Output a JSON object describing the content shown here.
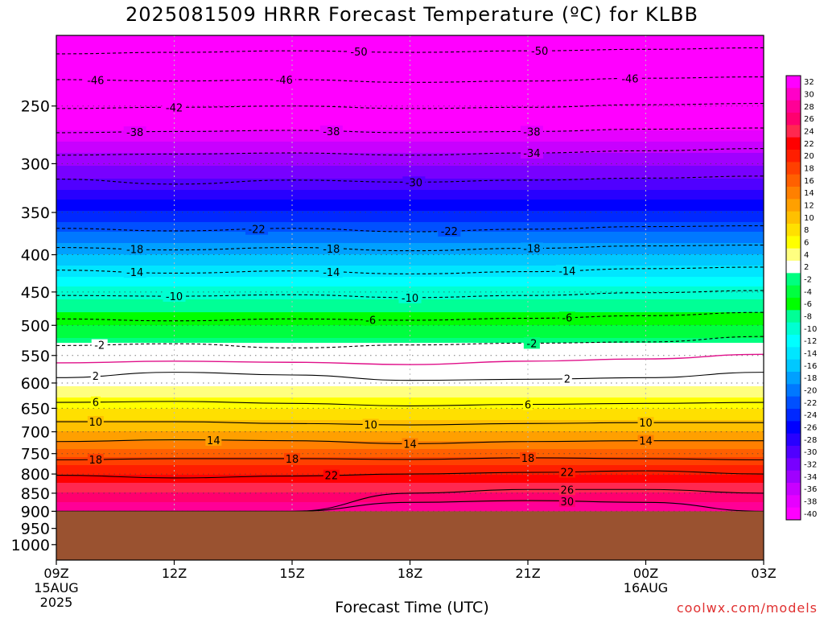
{
  "chart_data": {
    "type": "heatmap",
    "title": "2025081509 HRRR Forecast Temperature (ºC) for KLBB",
    "xlabel": "Forecast Time (UTC)",
    "ylabel": "",
    "x_ticks": [
      {
        "hour": 0,
        "label": "09Z",
        "sub1": "15AUG",
        "sub2": "2025"
      },
      {
        "hour": 3,
        "label": "12Z"
      },
      {
        "hour": 6,
        "label": "15Z"
      },
      {
        "hour": 9,
        "label": "18Z"
      },
      {
        "hour": 12,
        "label": "21Z"
      },
      {
        "hour": 15,
        "label": "00Z",
        "sub1": "16AUG"
      },
      {
        "hour": 18,
        "label": "03Z"
      }
    ],
    "xlim_hours": [
      0,
      18
    ],
    "ylim_hpa": [
      1050,
      200
    ],
    "y_scale": "log",
    "y_ticks": [
      250,
      300,
      350,
      400,
      450,
      500,
      550,
      600,
      650,
      700,
      750,
      800,
      850,
      900,
      950,
      1000
    ],
    "surface_pressure_hpa": 900,
    "ground_color": "#9a5230",
    "temperature_profile": [
      {
        "p": 200,
        "t": -54
      },
      {
        "p": 230,
        "t": -47
      },
      {
        "p": 260,
        "t": -41
      },
      {
        "p": 290,
        "t": -35
      },
      {
        "p": 320,
        "t": -30
      },
      {
        "p": 360,
        "t": -23
      },
      {
        "p": 400,
        "t": -17
      },
      {
        "p": 450,
        "t": -10
      },
      {
        "p": 500,
        "t": -5
      },
      {
        "p": 550,
        "t": 0
      },
      {
        "p": 600,
        "t": 2.5
      },
      {
        "p": 650,
        "t": 7
      },
      {
        "p": 700,
        "t": 11
      },
      {
        "p": 750,
        "t": 16
      },
      {
        "p": 800,
        "t": 21
      },
      {
        "p": 850,
        "t": 25
      },
      {
        "p": 900,
        "t": 29
      }
    ],
    "contours": [
      {
        "value": -50,
        "label": "-50",
        "style": "dashed",
        "p": [
          212,
          211,
          210,
          211,
          210,
          209,
          208
        ],
        "labels_at": [
          7.7,
          12.3
        ]
      },
      {
        "value": -46,
        "label": "-46",
        "style": "dashed",
        "p": [
          230,
          231,
          230,
          232,
          231,
          229,
          228
        ],
        "labels_at": [
          1.0,
          5.8,
          14.6
        ]
      },
      {
        "value": -42,
        "label": "-42",
        "style": "dashed",
        "p": [
          252,
          251,
          250,
          252,
          251,
          249,
          248
        ],
        "labels_at": [
          3.0
        ]
      },
      {
        "value": -38,
        "label": "-38",
        "style": "dashed",
        "p": [
          272,
          271,
          270,
          272,
          271,
          269,
          268
        ],
        "labels_at": [
          2.0,
          7.0,
          12.1
        ]
      },
      {
        "value": -34,
        "label": "-34",
        "style": "dashed",
        "p": [
          292,
          291,
          290,
          292,
          290,
          288,
          286
        ],
        "labels_at": [
          12.1
        ]
      },
      {
        "value": -30,
        "label": "-30",
        "style": "dashed",
        "p": [
          315,
          320,
          316,
          318,
          316,
          314,
          312
        ],
        "labels_at": [
          9.1
        ]
      },
      {
        "value": -22,
        "label": "-22",
        "style": "dashed",
        "p": [
          368,
          371,
          368,
          372,
          369,
          366,
          365
        ],
        "labels_at": [
          5.1,
          10.0
        ]
      },
      {
        "value": -18,
        "label": "-18",
        "style": "dashed",
        "p": [
          391,
          394,
          391,
          395,
          392,
          389,
          388
        ],
        "labels_at": [
          2.0,
          7.0,
          12.1
        ]
      },
      {
        "value": -14,
        "label": "-14",
        "style": "dashed",
        "p": [
          420,
          424,
          421,
          425,
          422,
          418,
          416
        ],
        "labels_at": [
          2.0,
          7.0,
          13.0
        ]
      },
      {
        "value": -10,
        "label": "-10",
        "style": "dashed",
        "p": [
          455,
          456,
          454,
          458,
          455,
          451,
          448
        ],
        "labels_at": [
          3.0,
          9.0
        ]
      },
      {
        "value": -6,
        "label": "-6",
        "style": "dashed",
        "p": [
          490,
          493,
          490,
          492,
          489,
          485,
          480
        ],
        "labels_at": [
          8.0,
          13.0
        ]
      },
      {
        "value": -2,
        "label": "-2",
        "style": "dashed",
        "p": [
          533,
          530,
          537,
          532,
          529,
          527,
          518
        ],
        "labels_at": [
          1.1,
          12.1
        ]
      },
      {
        "value": 0,
        "label": "",
        "style": "magenta",
        "p": [
          563,
          560,
          562,
          566,
          560,
          556,
          548
        ],
        "labels_at": []
      },
      {
        "value": 2,
        "label": "2",
        "style": "solid",
        "p": [
          590,
          580,
          585,
          595,
          593,
          590,
          580
        ],
        "labels_at": [
          1.0,
          13.0
        ]
      },
      {
        "value": 6,
        "label": "6",
        "style": "solid",
        "p": [
          638,
          636,
          640,
          645,
          642,
          640,
          638
        ],
        "labels_at": [
          1.0,
          12.0
        ]
      },
      {
        "value": 10,
        "label": "10",
        "style": "solid",
        "p": [
          678,
          678,
          682,
          685,
          682,
          680,
          680
        ],
        "labels_at": [
          1.0,
          8.0,
          15.0
        ]
      },
      {
        "value": 14,
        "label": "14",
        "style": "solid",
        "p": [
          722,
          718,
          720,
          727,
          722,
          720,
          720
        ],
        "labels_at": [
          4.0,
          9.0,
          15.0
        ]
      },
      {
        "value": 18,
        "label": "18",
        "style": "solid",
        "p": [
          765,
          762,
          762,
          764,
          760,
          762,
          765
        ],
        "labels_at": [
          1.0,
          6.0,
          12.0
        ]
      },
      {
        "value": 22,
        "label": "22",
        "style": "solid",
        "p": [
          803,
          810,
          805,
          800,
          796,
          792,
          800
        ],
        "labels_at": [
          7.0,
          13.0
        ]
      },
      {
        "value": 26,
        "label": "26",
        "style": "solid",
        "p": [
          900,
          900,
          900,
          850,
          840,
          840,
          850
        ],
        "labels_at": [
          13.0
        ]
      },
      {
        "value": 30,
        "label": "30",
        "style": "solid",
        "p": [
          900,
          900,
          900,
          875,
          870,
          875,
          900
        ],
        "labels_at": [
          13.0
        ]
      }
    ],
    "colorbar": {
      "labels": [
        "32",
        "30",
        "28",
        "26",
        "24",
        "22",
        "20",
        "18",
        "16",
        "14",
        "12",
        "10",
        "8",
        "6",
        "4",
        "2",
        "-2",
        "-4",
        "-6",
        "-8",
        "-10",
        "-12",
        "-14",
        "-16",
        "-18",
        "-20",
        "-22",
        "-24",
        "-26",
        "-28",
        "-30",
        "-32",
        "-34",
        "-36",
        "-38",
        "-40"
      ],
      "colors": [
        "#ff00ff",
        "#ff00c8",
        "#ff0096",
        "#ff006e",
        "#ff2850",
        "#ff0000",
        "#ff1e00",
        "#ff4000",
        "#ff6000",
        "#ff8000",
        "#ffa000",
        "#ffc000",
        "#ffe000",
        "#ffff00",
        "#ffff80",
        "#ffffff",
        "#00ff80",
        "#00ff40",
        "#00ff00",
        "#00ff96",
        "#00ffd2",
        "#00ffff",
        "#00e6ff",
        "#00c8ff",
        "#00a0ff",
        "#0078ff",
        "#0050ff",
        "#0028ff",
        "#0000ff",
        "#2800ff",
        "#5000ff",
        "#7800ff",
        "#a000ff",
        "#c800ff",
        "#e600ff",
        "#ff00ff"
      ]
    }
  },
  "credit": "coolwx.com/models"
}
